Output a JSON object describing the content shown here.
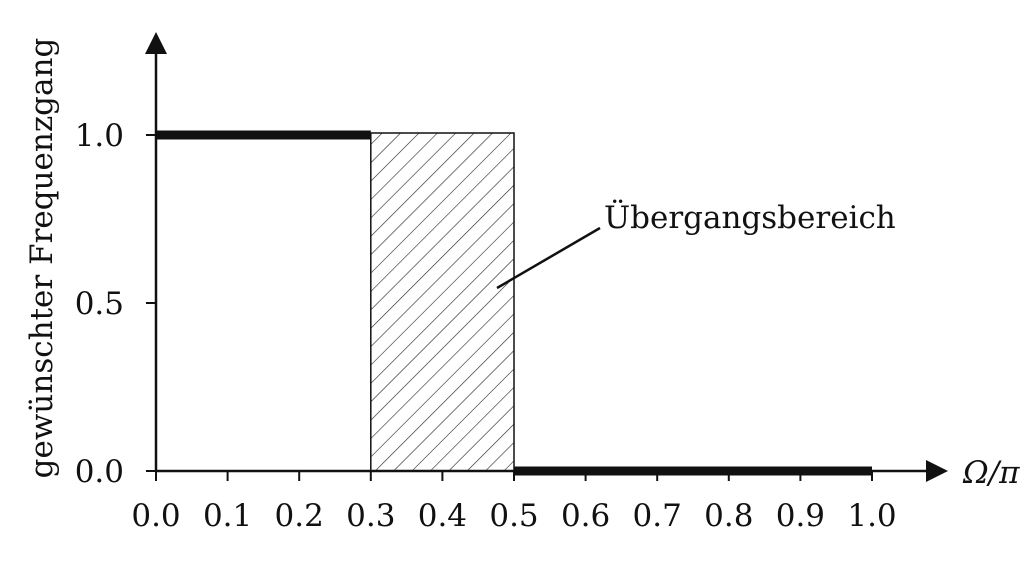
{
  "chart_data": {
    "type": "line",
    "title": "",
    "ylabel": "gewünschter Frequenzgang",
    "xlabel": "Ω/π",
    "x_ticks": [
      "0.0",
      "0.1",
      "0.2",
      "0.3",
      "0.4",
      "0.5",
      "0.6",
      "0.7",
      "0.8",
      "0.9",
      "1.0"
    ],
    "y_ticks": [
      "0.0",
      "0.5",
      "1.0"
    ],
    "xlim": [
      0,
      1.0
    ],
    "ylim": [
      0,
      1.0
    ],
    "grid": false,
    "series": [
      {
        "segment": "passband",
        "x": [
          0.0,
          0.3
        ],
        "y": [
          1.0,
          1.0
        ]
      },
      {
        "segment": "stopband",
        "x": [
          0.5,
          1.0
        ],
        "y": [
          0.0,
          0.0
        ]
      }
    ],
    "transition_band": {
      "x_start": 0.3,
      "x_end": 0.5,
      "label": "Übergangsbereich"
    }
  }
}
